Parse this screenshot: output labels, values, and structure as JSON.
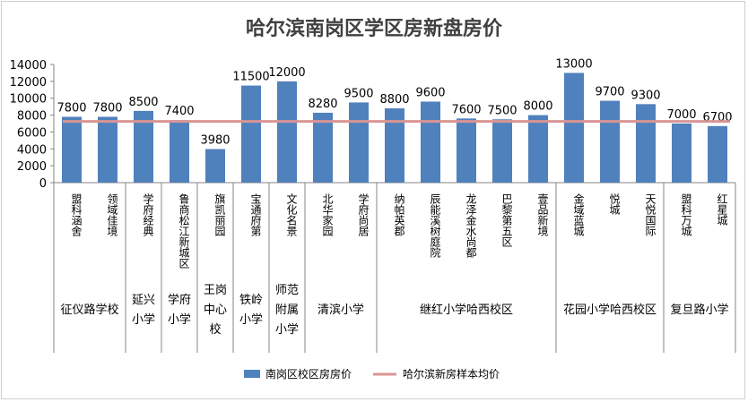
{
  "chart_data": {
    "type": "bar",
    "title": "哈尔滨南岗区学区房新盘房价",
    "categories": [
      "盟科涵舍",
      "领域佳境",
      "学府经典",
      "鲁商松江新城区",
      "旗凯丽园",
      "宝通府第",
      "文化名景",
      "北华家园",
      "学府尚居",
      "纳帕英郡",
      "辰能溪树庭院",
      "龙泽金水尚都",
      "巴黎第五区",
      "壹品新境",
      "金域蓝城",
      "悦城",
      "天悦国际",
      "盟科万城",
      "红星城"
    ],
    "groups": [
      {
        "label": "征仪路学校",
        "categories": [
          "盟科涵舍",
          "领域佳境"
        ]
      },
      {
        "label": "延兴小学",
        "categories": [
          "学府经典"
        ]
      },
      {
        "label": "学府小学",
        "categories": [
          "鲁商松江新城区"
        ]
      },
      {
        "label": "王岗中心校",
        "categories": [
          "旗凯丽园"
        ]
      },
      {
        "label": "铁岭小学",
        "categories": [
          "宝通府第"
        ]
      },
      {
        "label": "师范附属小学",
        "categories": [
          "文化名景"
        ]
      },
      {
        "label": "清滨小学",
        "categories": [
          "北华家园",
          "学府尚居"
        ]
      },
      {
        "label": "继红小学哈西校区",
        "categories": [
          "纳帕英郡",
          "辰能溪树庭院",
          "龙泽金水尚都",
          "巴黎第五区",
          "壹品新境"
        ]
      },
      {
        "label": "花园小学哈西校区",
        "categories": [
          "金域蓝城",
          "悦城",
          "天悦国际"
        ]
      },
      {
        "label": "复旦路小学",
        "categories": [
          "盟科万城",
          "红星城"
        ]
      }
    ],
    "series": [
      {
        "name": "南岗区校区房房价",
        "type": "bar",
        "color": "#4f81bd",
        "values": [
          7800,
          7800,
          8500,
          7400,
          3980,
          11500,
          12000,
          8280,
          9500,
          8800,
          9600,
          7600,
          7500,
          8000,
          13000,
          9700,
          9300,
          7000,
          6700
        ]
      },
      {
        "name": "哈尔滨新房样本均价",
        "type": "line",
        "color": "#d99594",
        "value": 7250
      }
    ],
    "ylim": [
      0,
      14000
    ],
    "yticks": [
      0,
      2000,
      4000,
      6000,
      8000,
      10000,
      12000,
      14000
    ],
    "legend_position": "bottom",
    "grid": false
  }
}
